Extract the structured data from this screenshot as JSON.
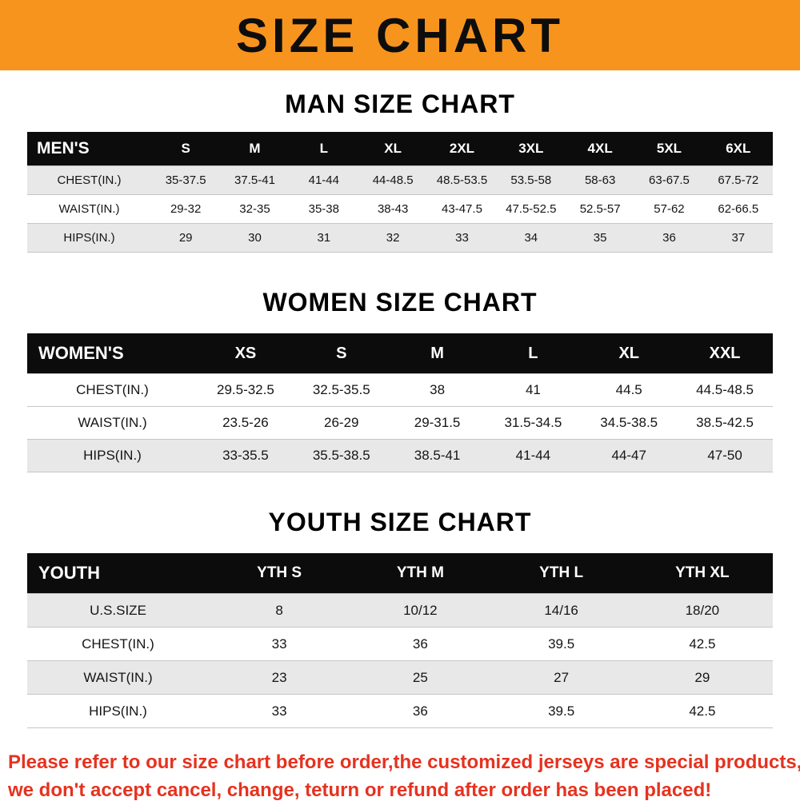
{
  "banner": {
    "title": "SIZE CHART",
    "background": "#f7941e"
  },
  "sections": [
    {
      "id": "men",
      "heading": "MAN SIZE CHART",
      "header": [
        "MEN'S",
        "S",
        "M",
        "L",
        "XL",
        "2XL",
        "3XL",
        "4XL",
        "5XL",
        "6XL"
      ],
      "rows": [
        [
          "CHEST(IN.)",
          "35-37.5",
          "37.5-41",
          "41-44",
          "44-48.5",
          "48.5-53.5",
          "53.5-58",
          "58-63",
          "63-67.5",
          "67.5-72"
        ],
        [
          "WAIST(IN.)",
          "29-32",
          "32-35",
          "35-38",
          "38-43",
          "43-47.5",
          "47.5-52.5",
          "52.5-57",
          "57-62",
          "62-66.5"
        ],
        [
          "HIPS(IN.)",
          "29",
          "30",
          "31",
          "32",
          "33",
          "34",
          "35",
          "36",
          "37"
        ]
      ]
    },
    {
      "id": "women",
      "heading": "WOMEN SIZE CHART",
      "header": [
        "WOMEN'S",
        "XS",
        "S",
        "M",
        "L",
        "XL",
        "XXL"
      ],
      "rows": [
        [
          "CHEST(IN.)",
          "29.5-32.5",
          "32.5-35.5",
          "38",
          "41",
          "44.5",
          "44.5-48.5"
        ],
        [
          "WAIST(IN.)",
          "23.5-26",
          "26-29",
          "29-31.5",
          "31.5-34.5",
          "34.5-38.5",
          "38.5-42.5"
        ],
        [
          "HIPS(IN.)",
          "33-35.5",
          "35.5-38.5",
          "38.5-41",
          "41-44",
          "44-47",
          "47-50"
        ]
      ]
    },
    {
      "id": "youth",
      "heading": "YOUTH SIZE CHART",
      "header": [
        "YOUTH",
        "YTH S",
        "YTH M",
        "YTH L",
        "YTH XL"
      ],
      "rows": [
        [
          "U.S.SIZE",
          "8",
          "10/12",
          "14/16",
          "18/20"
        ],
        [
          "CHEST(IN.)",
          "33",
          "36",
          "39.5",
          "42.5"
        ],
        [
          "WAIST(IN.)",
          "23",
          "25",
          "27",
          "29"
        ],
        [
          "HIPS(IN.)",
          "33",
          "36",
          "39.5",
          "42.5"
        ]
      ]
    }
  ],
  "footer": {
    "line1": "Please refer to our size chart before order,the customized jerseys are special products,",
    "line2": "we don't accept cancel, change, teturn or refund after order has been placed!",
    "color": "#e6321f"
  }
}
